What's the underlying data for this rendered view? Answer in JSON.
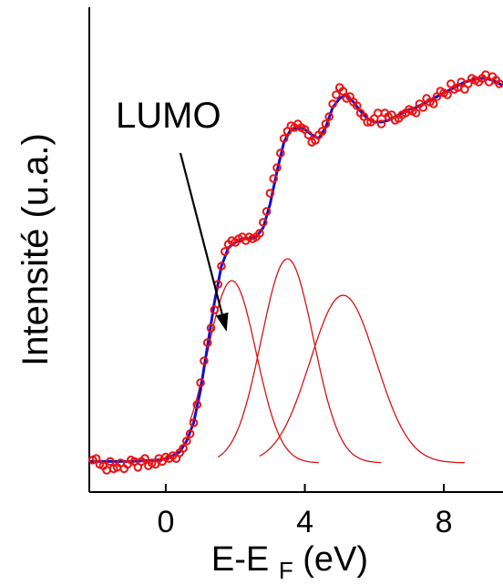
{
  "chart_data": {
    "type": "line",
    "title": "",
    "ylabel": "Intensité (u.a.)",
    "xlabel": {
      "base": "E-E",
      "subscript": "F",
      "unit": " (eV)"
    },
    "xlim": [
      -2.2,
      9.7
    ],
    "ylim": [
      -0.08,
      1.25
    ],
    "x_ticks": [
      0,
      4,
      8
    ],
    "x_tick_labels": [
      "0",
      "4",
      "8"
    ],
    "y_tick_labels_shown": false,
    "annotation": {
      "text": "LUMO",
      "points_to": {
        "x": 1.75,
        "y": 0.36
      }
    },
    "series": [
      {
        "style": "markers",
        "marker": "open-circle",
        "color": "#ee1111",
        "points": [
          [
            -2.1,
            0.008
          ],
          [
            -2.0,
            0.012
          ],
          [
            -1.9,
            -0.004
          ],
          [
            -1.8,
            -0.008
          ],
          [
            -1.7,
            -0.02
          ],
          [
            -1.6,
            0.004
          ],
          [
            -1.5,
            -0.016
          ],
          [
            -1.4,
            -0.012
          ],
          [
            -1.3,
            0.0
          ],
          [
            -1.2,
            -0.016
          ],
          [
            -1.1,
            -0.004
          ],
          [
            -1.0,
            0.008
          ],
          [
            -0.9,
            0.004
          ],
          [
            -0.8,
            -0.012
          ],
          [
            -0.7,
            0.004
          ],
          [
            -0.6,
            0.012
          ],
          [
            -0.5,
            -0.008
          ],
          [
            -0.4,
            0.0
          ],
          [
            -0.3,
            -0.004
          ],
          [
            -0.2,
            0.012
          ],
          [
            -0.1,
            0.004
          ],
          [
            0.0,
            0.016
          ],
          [
            0.1,
            0.012
          ],
          [
            0.2,
            0.02
          ],
          [
            0.3,
            0.012
          ],
          [
            0.4,
            0.028
          ],
          [
            0.5,
            0.04
          ],
          [
            0.6,
            0.06
          ],
          [
            0.7,
            0.08
          ],
          [
            0.8,
            0.11
          ],
          [
            0.9,
            0.16
          ],
          [
            1.0,
            0.22
          ],
          [
            1.1,
            0.28
          ],
          [
            1.2,
            0.33
          ],
          [
            1.3,
            0.37
          ],
          [
            1.4,
            0.42
          ],
          [
            1.5,
            0.49
          ],
          [
            1.6,
            0.54
          ],
          [
            1.7,
            0.58
          ],
          [
            1.8,
            0.6
          ],
          [
            1.9,
            0.61
          ],
          [
            2.0,
            0.605
          ],
          [
            2.1,
            0.615
          ],
          [
            2.2,
            0.62
          ],
          [
            2.3,
            0.61
          ],
          [
            2.4,
            0.62
          ],
          [
            2.5,
            0.615
          ],
          [
            2.6,
            0.62
          ],
          [
            2.7,
            0.63
          ],
          [
            2.8,
            0.66
          ],
          [
            2.9,
            0.69
          ],
          [
            3.0,
            0.74
          ],
          [
            3.1,
            0.78
          ],
          [
            3.2,
            0.81
          ],
          [
            3.3,
            0.85
          ],
          [
            3.4,
            0.89
          ],
          [
            3.5,
            0.91
          ],
          [
            3.6,
            0.925
          ],
          [
            3.7,
            0.92
          ],
          [
            3.8,
            0.93
          ],
          [
            3.9,
            0.92
          ],
          [
            4.0,
            0.915
          ],
          [
            4.1,
            0.9
          ],
          [
            4.2,
            0.88
          ],
          [
            4.3,
            0.885
          ],
          [
            4.4,
            0.9
          ],
          [
            4.5,
            0.91
          ],
          [
            4.6,
            0.93
          ],
          [
            4.7,
            0.95
          ],
          [
            4.8,
            0.985
          ],
          [
            4.9,
            1.01
          ],
          [
            5.0,
            1.03
          ],
          [
            5.1,
            1.02
          ],
          [
            5.2,
            1.0
          ],
          [
            5.3,
            1.005
          ],
          [
            5.4,
            0.99
          ],
          [
            5.5,
            0.98
          ],
          [
            5.6,
            0.96
          ],
          [
            5.7,
            0.95
          ],
          [
            5.8,
            0.935
          ],
          [
            5.9,
            0.935
          ],
          [
            6.0,
            0.945
          ],
          [
            6.1,
            0.96
          ],
          [
            6.2,
            0.93
          ],
          [
            6.3,
            0.96
          ],
          [
            6.4,
            0.95
          ],
          [
            6.5,
            0.955
          ],
          [
            6.6,
            0.94
          ],
          [
            6.7,
            0.945
          ],
          [
            6.8,
            0.955
          ],
          [
            6.9,
            0.96
          ],
          [
            7.0,
            0.97
          ],
          [
            7.1,
            0.965
          ],
          [
            7.2,
            0.96
          ],
          [
            7.3,
            0.985
          ],
          [
            7.4,
            0.975
          ],
          [
            7.5,
            1.0
          ],
          [
            7.6,
            0.99
          ],
          [
            7.7,
            0.985
          ],
          [
            7.8,
            1.005
          ],
          [
            7.9,
            1.02
          ],
          [
            8.0,
            1.015
          ],
          [
            8.1,
            1.01
          ],
          [
            8.2,
            1.04
          ],
          [
            8.3,
            1.025
          ],
          [
            8.4,
            1.03
          ],
          [
            8.5,
            1.045
          ],
          [
            8.6,
            1.025
          ],
          [
            8.7,
            1.04
          ],
          [
            8.8,
            1.055
          ],
          [
            8.9,
            1.05
          ],
          [
            9.0,
            1.045
          ],
          [
            9.1,
            1.055
          ],
          [
            9.2,
            1.065
          ],
          [
            9.3,
            1.045
          ],
          [
            9.4,
            1.06
          ],
          [
            9.5,
            1.05
          ],
          [
            9.6,
            1.04
          ]
        ]
      },
      {
        "style": "line",
        "color": "#1010cc",
        "points": [
          [
            -2.2,
            0.004
          ],
          [
            -1.8,
            0.004
          ],
          [
            -1.4,
            0.004
          ],
          [
            -1.0,
            0.004
          ],
          [
            -0.6,
            0.006
          ],
          [
            -0.2,
            0.008
          ],
          [
            0.0,
            0.012
          ],
          [
            0.2,
            0.02
          ],
          [
            0.4,
            0.03
          ],
          [
            0.6,
            0.06
          ],
          [
            0.8,
            0.11
          ],
          [
            1.0,
            0.2
          ],
          [
            1.2,
            0.32
          ],
          [
            1.4,
            0.44
          ],
          [
            1.6,
            0.54
          ],
          [
            1.8,
            0.59
          ],
          [
            2.0,
            0.605
          ],
          [
            2.2,
            0.615
          ],
          [
            2.4,
            0.615
          ],
          [
            2.6,
            0.62
          ],
          [
            2.8,
            0.645
          ],
          [
            3.0,
            0.71
          ],
          [
            3.2,
            0.8
          ],
          [
            3.4,
            0.88
          ],
          [
            3.6,
            0.915
          ],
          [
            3.8,
            0.92
          ],
          [
            4.0,
            0.915
          ],
          [
            4.2,
            0.9
          ],
          [
            4.4,
            0.89
          ],
          [
            4.6,
            0.92
          ],
          [
            4.8,
            0.975
          ],
          [
            5.0,
            1.0
          ],
          [
            5.2,
            1.01
          ],
          [
            5.4,
            0.99
          ],
          [
            5.6,
            0.965
          ],
          [
            5.8,
            0.945
          ],
          [
            6.0,
            0.935
          ],
          [
            6.2,
            0.935
          ],
          [
            6.4,
            0.94
          ],
          [
            6.6,
            0.95
          ],
          [
            6.8,
            0.96
          ],
          [
            7.0,
            0.97
          ],
          [
            7.2,
            0.975
          ],
          [
            7.4,
            0.985
          ],
          [
            7.6,
            0.995
          ],
          [
            7.8,
            1.005
          ],
          [
            8.0,
            1.015
          ],
          [
            8.2,
            1.025
          ],
          [
            8.4,
            1.035
          ],
          [
            8.6,
            1.045
          ],
          [
            8.8,
            1.05
          ],
          [
            9.0,
            1.055
          ],
          [
            9.2,
            1.055
          ],
          [
            9.4,
            1.05
          ],
          [
            9.6,
            1.04
          ],
          [
            9.7,
            1.035
          ]
        ]
      },
      {
        "style": "gaussian",
        "color": "#dd1111",
        "center": 1.9,
        "amplitude": 0.5,
        "sigma": 0.7,
        "x_range": [
          0.7,
          4.4
        ]
      },
      {
        "style": "gaussian",
        "color": "#dd1111",
        "center": 3.5,
        "amplitude": 0.56,
        "sigma": 0.75,
        "x_range": [
          1.5,
          6.2
        ]
      },
      {
        "style": "gaussian",
        "color": "#dd1111",
        "center": 5.1,
        "amplitude": 0.46,
        "sigma": 0.95,
        "x_range": [
          2.7,
          8.6
        ]
      }
    ]
  }
}
